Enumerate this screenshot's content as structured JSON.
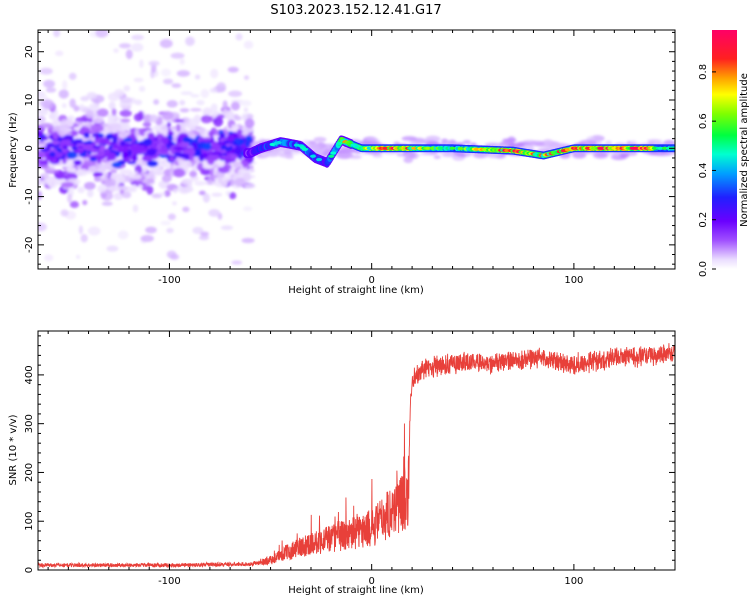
{
  "title": "S103.2023.152.12.41.G17",
  "chart_data": [
    {
      "type": "heatmap",
      "xlabel": "Height of straight line (km)",
      "ylabel": "Frequency (Hz)",
      "xlim": [
        -165,
        150
      ],
      "ylim": [
        -25,
        24.5
      ],
      "xticks": [
        -100,
        0,
        100
      ],
      "yticks": [
        -20,
        -10,
        0,
        10,
        20
      ],
      "colorbar": {
        "label": "Normalized spectral amplitude",
        "range": [
          0,
          0.97
        ],
        "ticks": [
          0.0,
          0.2,
          0.4,
          0.6,
          0.8
        ],
        "tick_labels": [
          "0.0",
          "0.2",
          "0.4",
          "0.6",
          "0.8"
        ],
        "colormap": "gist_rainbow (white → violet → blue → cyan → green → yellow → orange → red → magenta)"
      },
      "description_points": [
        {
          "height_km": -160,
          "freq_hz": 0.0,
          "amp": 0.25
        },
        {
          "height_km": -130,
          "freq_hz": 1.0,
          "amp": 0.15
        },
        {
          "height_km": -100,
          "freq_hz": 0.5,
          "amp": 0.2
        },
        {
          "height_km": -75,
          "freq_hz": -1.0,
          "amp": 0.2
        },
        {
          "height_km": -60,
          "freq_hz": -1.0,
          "amp": 0.25
        },
        {
          "height_km": -55,
          "freq_hz": 0.0,
          "amp": 0.4
        },
        {
          "height_km": -45,
          "freq_hz": 1.3,
          "amp": 0.45
        },
        {
          "height_km": -35,
          "freq_hz": 0.5,
          "amp": 0.45
        },
        {
          "height_km": -28,
          "freq_hz": -2.0,
          "amp": 0.4
        },
        {
          "height_km": -22,
          "freq_hz": -3.0,
          "amp": 0.35
        },
        {
          "height_km": -15,
          "freq_hz": 1.7,
          "amp": 0.7
        },
        {
          "height_km": -5,
          "freq_hz": 0.0,
          "amp": 0.7
        },
        {
          "height_km": 10,
          "freq_hz": 0.0,
          "amp": 0.9
        },
        {
          "height_km": 40,
          "freq_hz": 0.0,
          "amp": 0.5
        },
        {
          "height_km": 70,
          "freq_hz": -0.5,
          "amp": 0.9
        },
        {
          "height_km": 85,
          "freq_hz": -1.5,
          "amp": 0.7
        },
        {
          "height_km": 100,
          "freq_hz": 0.0,
          "amp": 0.9
        },
        {
          "height_km": 140,
          "freq_hz": 0.0,
          "amp": 0.95
        }
      ]
    },
    {
      "type": "line",
      "xlabel": "Height of straight line (km)",
      "ylabel": "SNR (10 * v/v)",
      "xlim": [
        -165,
        150
      ],
      "ylim": [
        0,
        490
      ],
      "xticks": [
        -100,
        0,
        100
      ],
      "yticks": [
        0,
        100,
        200,
        300,
        400
      ],
      "color": "#e8403a",
      "series_envelope": [
        {
          "x": -165,
          "y": 10
        },
        {
          "x": -100,
          "y": 10
        },
        {
          "x": -60,
          "y": 12
        },
        {
          "x": -50,
          "y": 20
        },
        {
          "x": -40,
          "y": 40
        },
        {
          "x": -30,
          "y": 55
        },
        {
          "x": -20,
          "y": 65
        },
        {
          "x": -10,
          "y": 75
        },
        {
          "x": 0,
          "y": 85
        },
        {
          "x": 8,
          "y": 115
        },
        {
          "x": 15,
          "y": 140
        },
        {
          "x": 18,
          "y": 155
        },
        {
          "x": 19,
          "y": 330
        },
        {
          "x": 20,
          "y": 390
        },
        {
          "x": 25,
          "y": 410
        },
        {
          "x": 40,
          "y": 425
        },
        {
          "x": 60,
          "y": 425
        },
        {
          "x": 80,
          "y": 435
        },
        {
          "x": 100,
          "y": 420
        },
        {
          "x": 120,
          "y": 435
        },
        {
          "x": 140,
          "y": 440
        },
        {
          "x": 150,
          "y": 445
        }
      ]
    }
  ]
}
